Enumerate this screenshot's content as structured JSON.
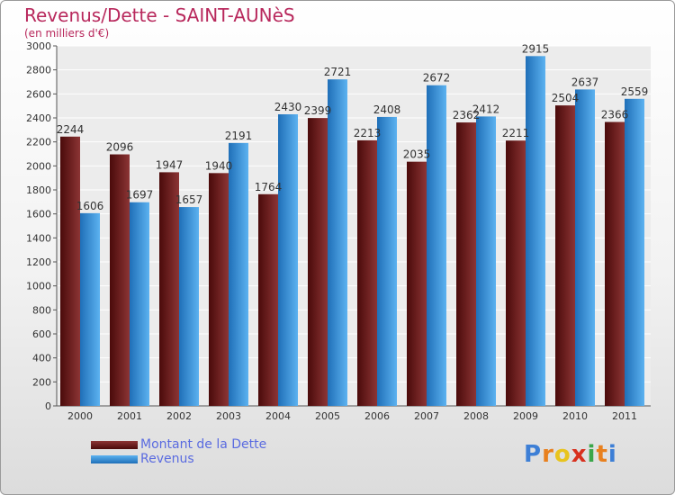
{
  "chart_data": {
    "type": "bar",
    "title": "Revenus/Dette - SAINT-AUNèS",
    "subtitle": "(en milliers d'€)",
    "categories": [
      "2000",
      "2001",
      "2002",
      "2003",
      "2004",
      "2005",
      "2006",
      "2007",
      "2008",
      "2009",
      "2010",
      "2011"
    ],
    "series": [
      {
        "name": "Montant de la Dette",
        "color": "#7a2424",
        "values": [
          2244,
          2096,
          1947,
          1940,
          1764,
          2399,
          2213,
          2035,
          2362,
          2211,
          2504,
          2366
        ]
      },
      {
        "name": "Revenus",
        "color": "#4aa3e6",
        "values": [
          1606,
          1697,
          1657,
          2191,
          2430,
          2721,
          2408,
          2672,
          2412,
          2915,
          2637,
          2559
        ]
      }
    ],
    "ylim": [
      0,
      3000
    ],
    "yticks": [
      0,
      200,
      400,
      600,
      800,
      1000,
      1200,
      1400,
      1600,
      1800,
      2000,
      2200,
      2400,
      2600,
      2800,
      3000
    ],
    "grid": true,
    "legend": "bottom-left"
  },
  "logo": {
    "letters": [
      "P",
      "r",
      "o",
      "x",
      "i",
      "t",
      "i"
    ],
    "colors": [
      "#3d7fd6",
      "#e8801e",
      "#e8c41e",
      "#d8301e",
      "#3aa64a",
      "#e8801e",
      "#3d7fd6"
    ]
  }
}
